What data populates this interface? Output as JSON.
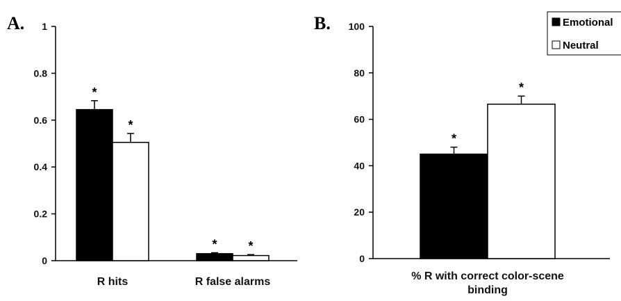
{
  "chart_data": [
    {
      "panel": "A.",
      "type": "bar",
      "categories": [
        "R hits",
        "R false alarms"
      ],
      "series": [
        {
          "name": "Emotional",
          "values": [
            0.645,
            0.03
          ],
          "errors": [
            0.038,
            0.004
          ],
          "color": "#000000"
        },
        {
          "name": "Neutral",
          "values": [
            0.505,
            0.022
          ],
          "errors": [
            0.038,
            0.004
          ],
          "color": "#ffffff"
        }
      ],
      "significance": [
        [
          "*",
          "*"
        ],
        [
          "*",
          "*"
        ]
      ],
      "ylim": [
        0,
        1
      ],
      "yticks": [
        "0",
        "0.2",
        "0.4",
        "0.6",
        "0.8",
        "1"
      ],
      "xlabel": "",
      "ylabel": ""
    },
    {
      "panel": "B.",
      "type": "bar",
      "categories": [
        "% R with correct color-scene binding"
      ],
      "category_lines": [
        [
          "% R with correct color-scene",
          "binding"
        ]
      ],
      "series": [
        {
          "name": "Emotional",
          "values": [
            45
          ],
          "errors": [
            3
          ],
          "color": "#000000"
        },
        {
          "name": "Neutral",
          "values": [
            66.5
          ],
          "errors": [
            3.5
          ],
          "color": "#ffffff"
        }
      ],
      "significance": [
        [
          "*"
        ],
        [
          "*"
        ]
      ],
      "ylim": [
        0,
        100
      ],
      "yticks": [
        "0",
        "20",
        "40",
        "60",
        "80",
        "100"
      ],
      "xlabel": "",
      "ylabel": "",
      "legend": {
        "position": "top-right",
        "entries": [
          "Emotional",
          "Neutral"
        ]
      }
    }
  ]
}
